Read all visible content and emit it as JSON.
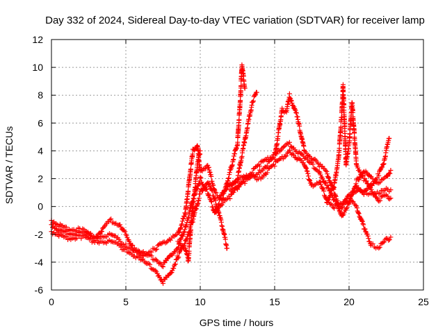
{
  "chart_data": {
    "type": "scatter",
    "title": "Day 332 of 2024, Sidereal Day-to-day VTEC variation (SDTVAR) for receiver lamp",
    "xlabel": "GPS time / hours",
    "ylabel": "SDTVAR / TECUs",
    "xlim": [
      0,
      25
    ],
    "ylim": [
      -6,
      12
    ],
    "xticks": [
      "0",
      "5",
      "10",
      "15",
      "20",
      "25"
    ],
    "yticks": [
      "-6",
      "-4",
      "-2",
      "0",
      "2",
      "4",
      "6",
      "8",
      "10",
      "12"
    ],
    "grid": true,
    "marker": "plus",
    "color": "#ff0000",
    "series": [
      {
        "name": "s1",
        "points": [
          [
            0,
            -1.3
          ],
          [
            0.5,
            -1.7
          ],
          [
            1,
            -1.9
          ],
          [
            2,
            -2.0
          ],
          [
            3,
            -2.2
          ],
          [
            4,
            -2.0
          ],
          [
            5,
            -2.8
          ],
          [
            6,
            -3.3
          ],
          [
            7,
            -3.8
          ],
          [
            7.5,
            -4.2
          ],
          [
            8,
            -3.5
          ],
          [
            8.5,
            -2.9
          ],
          [
            9,
            -1.5
          ],
          [
            9.5,
            0.5
          ],
          [
            10,
            2.0
          ],
          [
            10.5,
            1.0
          ],
          [
            11,
            -0.5
          ],
          [
            11.5,
            1.0
          ],
          [
            12,
            1.5
          ],
          [
            12.5,
            2.0
          ],
          [
            13,
            4.8
          ],
          [
            13.5,
            7.5
          ],
          [
            13.8,
            8.2
          ]
        ]
      },
      {
        "name": "s2",
        "points": [
          [
            0,
            -1.8
          ],
          [
            0.5,
            -2.0
          ],
          [
            1,
            -2.3
          ],
          [
            2,
            -2.2
          ],
          [
            3,
            -2.5
          ],
          [
            4,
            -2.5
          ],
          [
            5,
            -3.1
          ],
          [
            6,
            -3.8
          ],
          [
            7,
            -4.6
          ],
          [
            7.5,
            -5.4
          ],
          [
            8,
            -4.8
          ],
          [
            8.5,
            -3.6
          ],
          [
            9,
            -2.5
          ],
          [
            9.5,
            -1.0
          ],
          [
            10,
            1.0
          ],
          [
            10.5,
            1.8
          ],
          [
            11,
            0.5
          ],
          [
            11.5,
            -1.5
          ],
          [
            11.8,
            -3.0
          ]
        ]
      },
      {
        "name": "s3",
        "points": [
          [
            0,
            -1.0
          ],
          [
            0.5,
            -1.3
          ],
          [
            1,
            -1.6
          ],
          [
            2,
            -1.7
          ],
          [
            3,
            -2.2
          ],
          [
            3.5,
            -1.5
          ],
          [
            4,
            -1.0
          ],
          [
            4.5,
            -1.3
          ],
          [
            5,
            -2.0
          ],
          [
            5.5,
            -3.0
          ],
          [
            6,
            -3.5
          ],
          [
            7,
            -3.0
          ],
          [
            7.5,
            -2.6
          ],
          [
            8,
            -2.3
          ],
          [
            8.5,
            -2.0
          ],
          [
            9,
            -0.5
          ],
          [
            9.5,
            4.0
          ],
          [
            9.8,
            4.5
          ],
          [
            10,
            2.5
          ],
          [
            10.5,
            3.0
          ],
          [
            11,
            1.0
          ],
          [
            11.5,
            0.5
          ],
          [
            12,
            2.5
          ],
          [
            12.5,
            4.5
          ],
          [
            12.7,
            7.8
          ],
          [
            12.8,
            10.2
          ],
          [
            13,
            8.5
          ]
        ]
      },
      {
        "name": "s4",
        "points": [
          [
            11,
            -0.2
          ],
          [
            12,
            0.7
          ],
          [
            13,
            2.0
          ],
          [
            14,
            3.0
          ],
          [
            15,
            3.8
          ],
          [
            15.5,
            4.2
          ],
          [
            16,
            4.5
          ],
          [
            17,
            3.5
          ],
          [
            18,
            2.5
          ],
          [
            18.5,
            1.5
          ],
          [
            19,
            0.5
          ],
          [
            19.5,
            0.0
          ],
          [
            20,
            0.8
          ],
          [
            20.5,
            1.2
          ],
          [
            21,
            1.0
          ],
          [
            22,
            1.0
          ],
          [
            22.5,
            1.2
          ],
          [
            22.8,
            1.2
          ]
        ]
      },
      {
        "name": "s5",
        "points": [
          [
            12,
            1.2
          ],
          [
            13,
            1.8
          ],
          [
            14,
            2.5
          ],
          [
            15,
            3.5
          ],
          [
            15.5,
            7.0
          ],
          [
            15.8,
            6.8
          ],
          [
            16,
            8.0
          ],
          [
            16.5,
            6.5
          ],
          [
            17,
            4.0
          ],
          [
            18,
            3.0
          ],
          [
            18.5,
            2.5
          ],
          [
            19,
            1.0
          ],
          [
            19.5,
            -0.7
          ],
          [
            20,
            0.3
          ],
          [
            20.5,
            1.8
          ],
          [
            21,
            2.6
          ],
          [
            21.5,
            2.0
          ],
          [
            22,
            1.8
          ],
          [
            22.5,
            2.1
          ],
          [
            22.8,
            2.6
          ]
        ]
      },
      {
        "name": "s6",
        "points": [
          [
            12,
            1.6
          ],
          [
            13,
            2.2
          ],
          [
            14,
            2.0
          ],
          [
            15,
            3.0
          ],
          [
            16,
            4.0
          ],
          [
            17,
            3.0
          ],
          [
            17.5,
            1.5
          ],
          [
            18,
            1.8
          ],
          [
            18.5,
            0.5
          ],
          [
            19,
            0.0
          ],
          [
            19.5,
            0.2
          ],
          [
            20,
            0.5
          ],
          [
            20.5,
            0.0
          ],
          [
            21,
            -1.5
          ],
          [
            21.5,
            -2.8
          ],
          [
            22,
            -2.9
          ],
          [
            22.5,
            -2.4
          ],
          [
            22.8,
            -2.2
          ]
        ]
      },
      {
        "name": "s7",
        "points": [
          [
            18.5,
            0.3
          ],
          [
            19,
            1.5
          ],
          [
            19.3,
            3.5
          ],
          [
            19.5,
            6.5
          ],
          [
            19.6,
            8.7
          ],
          [
            19.8,
            3.0
          ],
          [
            20,
            4.5
          ],
          [
            20.2,
            7.5
          ],
          [
            20.5,
            3.0
          ],
          [
            21,
            2.0
          ],
          [
            21.5,
            1.2
          ],
          [
            22,
            0.5
          ],
          [
            22.5,
            0.8
          ],
          [
            22.8,
            0.6
          ]
        ]
      },
      {
        "name": "s8",
        "points": [
          [
            20.5,
            1.5
          ],
          [
            21,
            1.0
          ],
          [
            21.5,
            1.5
          ],
          [
            22,
            2.3
          ],
          [
            22.3,
            3.0
          ],
          [
            22.6,
            4.5
          ],
          [
            22.7,
            4.9
          ]
        ]
      },
      {
        "name": "s9",
        "points": [
          [
            8.5,
            -2.5
          ],
          [
            9,
            -3.0
          ],
          [
            9.2,
            -3.9
          ],
          [
            9.4,
            -1.0
          ],
          [
            9.6,
            0.8
          ],
          [
            9.8,
            3.0
          ],
          [
            10,
            4.0
          ]
        ]
      }
    ]
  }
}
